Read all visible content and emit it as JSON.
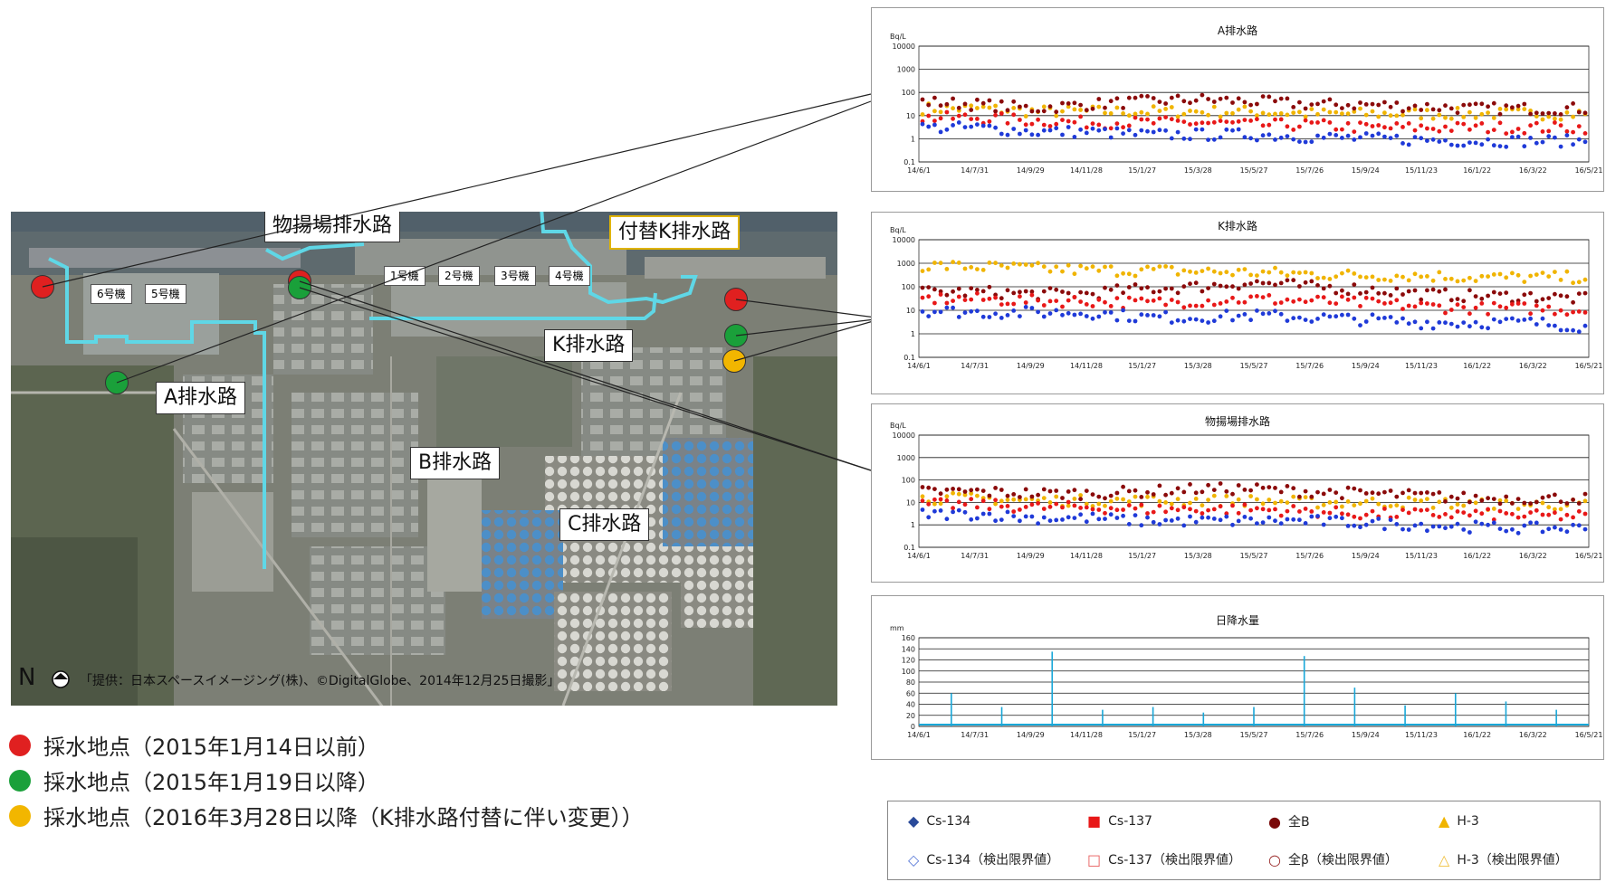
{
  "map": {
    "labels": {
      "butsuage": "物揚場排水路",
      "fukae_k": "付替K排水路",
      "k_drain": "K排水路",
      "a_drain": "A排水路",
      "b_drain": "B排水路",
      "c_drain": "C排水路"
    },
    "units": [
      "6号機",
      "5号機",
      "1号機",
      "2号機",
      "3号機",
      "4号機"
    ],
    "north": "N",
    "credit": "「提供：日本スペースイメージング(株)、©DigitalGlobe、2014年12月25日撮影」"
  },
  "legend": [
    {
      "label": "採水地点（2015年1月14日以前）",
      "color": "#e02020"
    },
    {
      "label": "採水地点（2015年1月19日以降）",
      "color": "#1aa03a"
    },
    {
      "label": "採水地点（2016年3月28日以降（K排水路付替に伴い変更））",
      "color": "#f2b600"
    }
  ],
  "chart_data": [
    {
      "type": "scatter",
      "title": "A排水路",
      "ylabel": "Bq/L",
      "yscale": "log",
      "yticks": [
        "10000",
        "1000",
        "100",
        "10",
        "1",
        "0.1"
      ],
      "x_ticks": [
        "14/6/1",
        "14/7/31",
        "14/9/29",
        "14/11/28",
        "15/1/27",
        "15/3/28",
        "15/5/27",
        "15/7/26",
        "15/9/24",
        "15/11/23",
        "16/1/22",
        "16/3/22",
        "16/5/21"
      ],
      "series": [
        {
          "name": "Cs-134",
          "color": "#1f3ad8",
          "values": [
            3,
            3,
            2,
            2,
            1.5,
            1.5,
            1.5,
            1.2,
            1,
            0.9,
            0.8,
            0.8,
            0.8
          ]
        },
        {
          "name": "Cs-137",
          "color": "#e81818",
          "values": [
            8,
            8,
            6,
            5,
            5,
            5,
            4,
            4,
            3,
            3,
            3,
            3,
            3
          ]
        },
        {
          "name": "全β",
          "color": "#8b0a0a",
          "values": [
            40,
            30,
            20,
            30,
            40,
            50,
            40,
            30,
            30,
            25,
            20,
            20,
            20
          ]
        },
        {
          "name": "H-3",
          "color": "#f0b400",
          "values": [
            20,
            20,
            15,
            15,
            15,
            15,
            15,
            12,
            12,
            12,
            12,
            12,
            12
          ]
        }
      ]
    },
    {
      "type": "scatter",
      "title": "K排水路",
      "ylabel": "Bq/L",
      "yscale": "log",
      "yticks": [
        "10000",
        "1000",
        "100",
        "10",
        "1",
        "0.1"
      ],
      "x_ticks": [
        "14/6/1",
        "14/7/31",
        "14/9/29",
        "14/11/28",
        "15/1/27",
        "15/3/28",
        "15/5/27",
        "15/7/26",
        "15/9/24",
        "15/11/23",
        "16/1/22",
        "16/3/22",
        "16/5/21"
      ],
      "series": [
        {
          "name": "Cs-134",
          "color": "#1f3ad8",
          "values": [
            10,
            8,
            8,
            8,
            5,
            5,
            6,
            5,
            4,
            3,
            3,
            3,
            2
          ]
        },
        {
          "name": "Cs-137",
          "color": "#e81818",
          "values": [
            30,
            30,
            25,
            25,
            20,
            25,
            30,
            25,
            20,
            15,
            12,
            12,
            10
          ]
        },
        {
          "name": "全β",
          "color": "#8b0a0a",
          "values": [
            60,
            60,
            50,
            50,
            80,
            100,
            150,
            100,
            80,
            50,
            40,
            40,
            30
          ]
        },
        {
          "name": "H-3",
          "color": "#f0b400",
          "values": [
            800,
            700,
            600,
            500,
            500,
            450,
            400,
            350,
            300,
            300,
            250,
            250,
            250
          ]
        }
      ]
    },
    {
      "type": "scatter",
      "title": "物揚場排水路",
      "ylabel": "Bq/L",
      "yscale": "log",
      "yticks": [
        "10000",
        "1000",
        "100",
        "10",
        "1",
        "0.1"
      ],
      "x_ticks": [
        "14/6/1",
        "14/7/31",
        "14/9/29",
        "14/11/28",
        "15/1/27",
        "15/3/28",
        "15/5/27",
        "15/7/26",
        "15/9/24",
        "15/11/23",
        "16/1/22",
        "16/3/22",
        "16/5/21"
      ],
      "series": [
        {
          "name": "Cs-134",
          "color": "#1f3ad8",
          "values": [
            3,
            3,
            2,
            2,
            1.5,
            1.5,
            1.5,
            1.5,
            1.2,
            1,
            0.8,
            0.7,
            0.7
          ]
        },
        {
          "name": "Cs-137",
          "color": "#e81818",
          "values": [
            8,
            8,
            6,
            6,
            5,
            5,
            5,
            4,
            3,
            3,
            3,
            2.5,
            2.5
          ]
        },
        {
          "name": "全β",
          "color": "#8b0a0a",
          "values": [
            30,
            30,
            25,
            25,
            30,
            40,
            40,
            30,
            25,
            20,
            15,
            15,
            15
          ]
        },
        {
          "name": "H-3",
          "color": "#f0b400",
          "values": [
            15,
            15,
            12,
            12,
            12,
            12,
            12,
            10,
            10,
            10,
            8,
            8,
            8
          ]
        }
      ]
    },
    {
      "type": "bar",
      "title": "日降水量",
      "ylabel": "mm",
      "ylim": [
        0,
        160
      ],
      "yticks": [
        "160",
        "140",
        "120",
        "100",
        "80",
        "60",
        "40",
        "20",
        "0"
      ],
      "x_ticks": [
        "14/6/1",
        "14/7/31",
        "14/9/29",
        "14/11/28",
        "15/1/27",
        "15/3/28",
        "15/5/27",
        "15/7/26",
        "15/9/24",
        "15/11/23",
        "16/1/22",
        "16/3/22",
        "16/5/21"
      ],
      "series": [
        {
          "name": "日降水量",
          "color": "#19a7d8",
          "values": [
            60,
            35,
            135,
            30,
            35,
            25,
            35,
            127,
            70,
            38,
            60,
            45,
            30
          ]
        }
      ]
    }
  ],
  "chart_legend": [
    {
      "symbol": "◆",
      "label": "Cs-134",
      "color": "#2a4a9a"
    },
    {
      "symbol": "■",
      "label": "Cs-137",
      "color": "#e81818"
    },
    {
      "symbol": "●",
      "label": "全B",
      "color": "#7a0a0a"
    },
    {
      "symbol": "▲",
      "label": "H-3",
      "color": "#f0b400"
    },
    {
      "symbol": "◇",
      "label": "Cs-134（検出限界値）",
      "color": "#5a7ad8"
    },
    {
      "symbol": "□",
      "label": "Cs-137（検出限界値）",
      "color": "#e85a5a"
    },
    {
      "symbol": "○",
      "label": "全β（検出限界値）",
      "color": "#9a2a2a"
    },
    {
      "symbol": "△",
      "label": "H-3（検出限界値）",
      "color": "#f0c040"
    }
  ],
  "colors": {
    "drain_line": "#5fd7e6",
    "red_point": "#e02020",
    "green_point": "#1aa03a",
    "yellow_point": "#f2b600",
    "chart_grid": "#1a1a1a"
  }
}
